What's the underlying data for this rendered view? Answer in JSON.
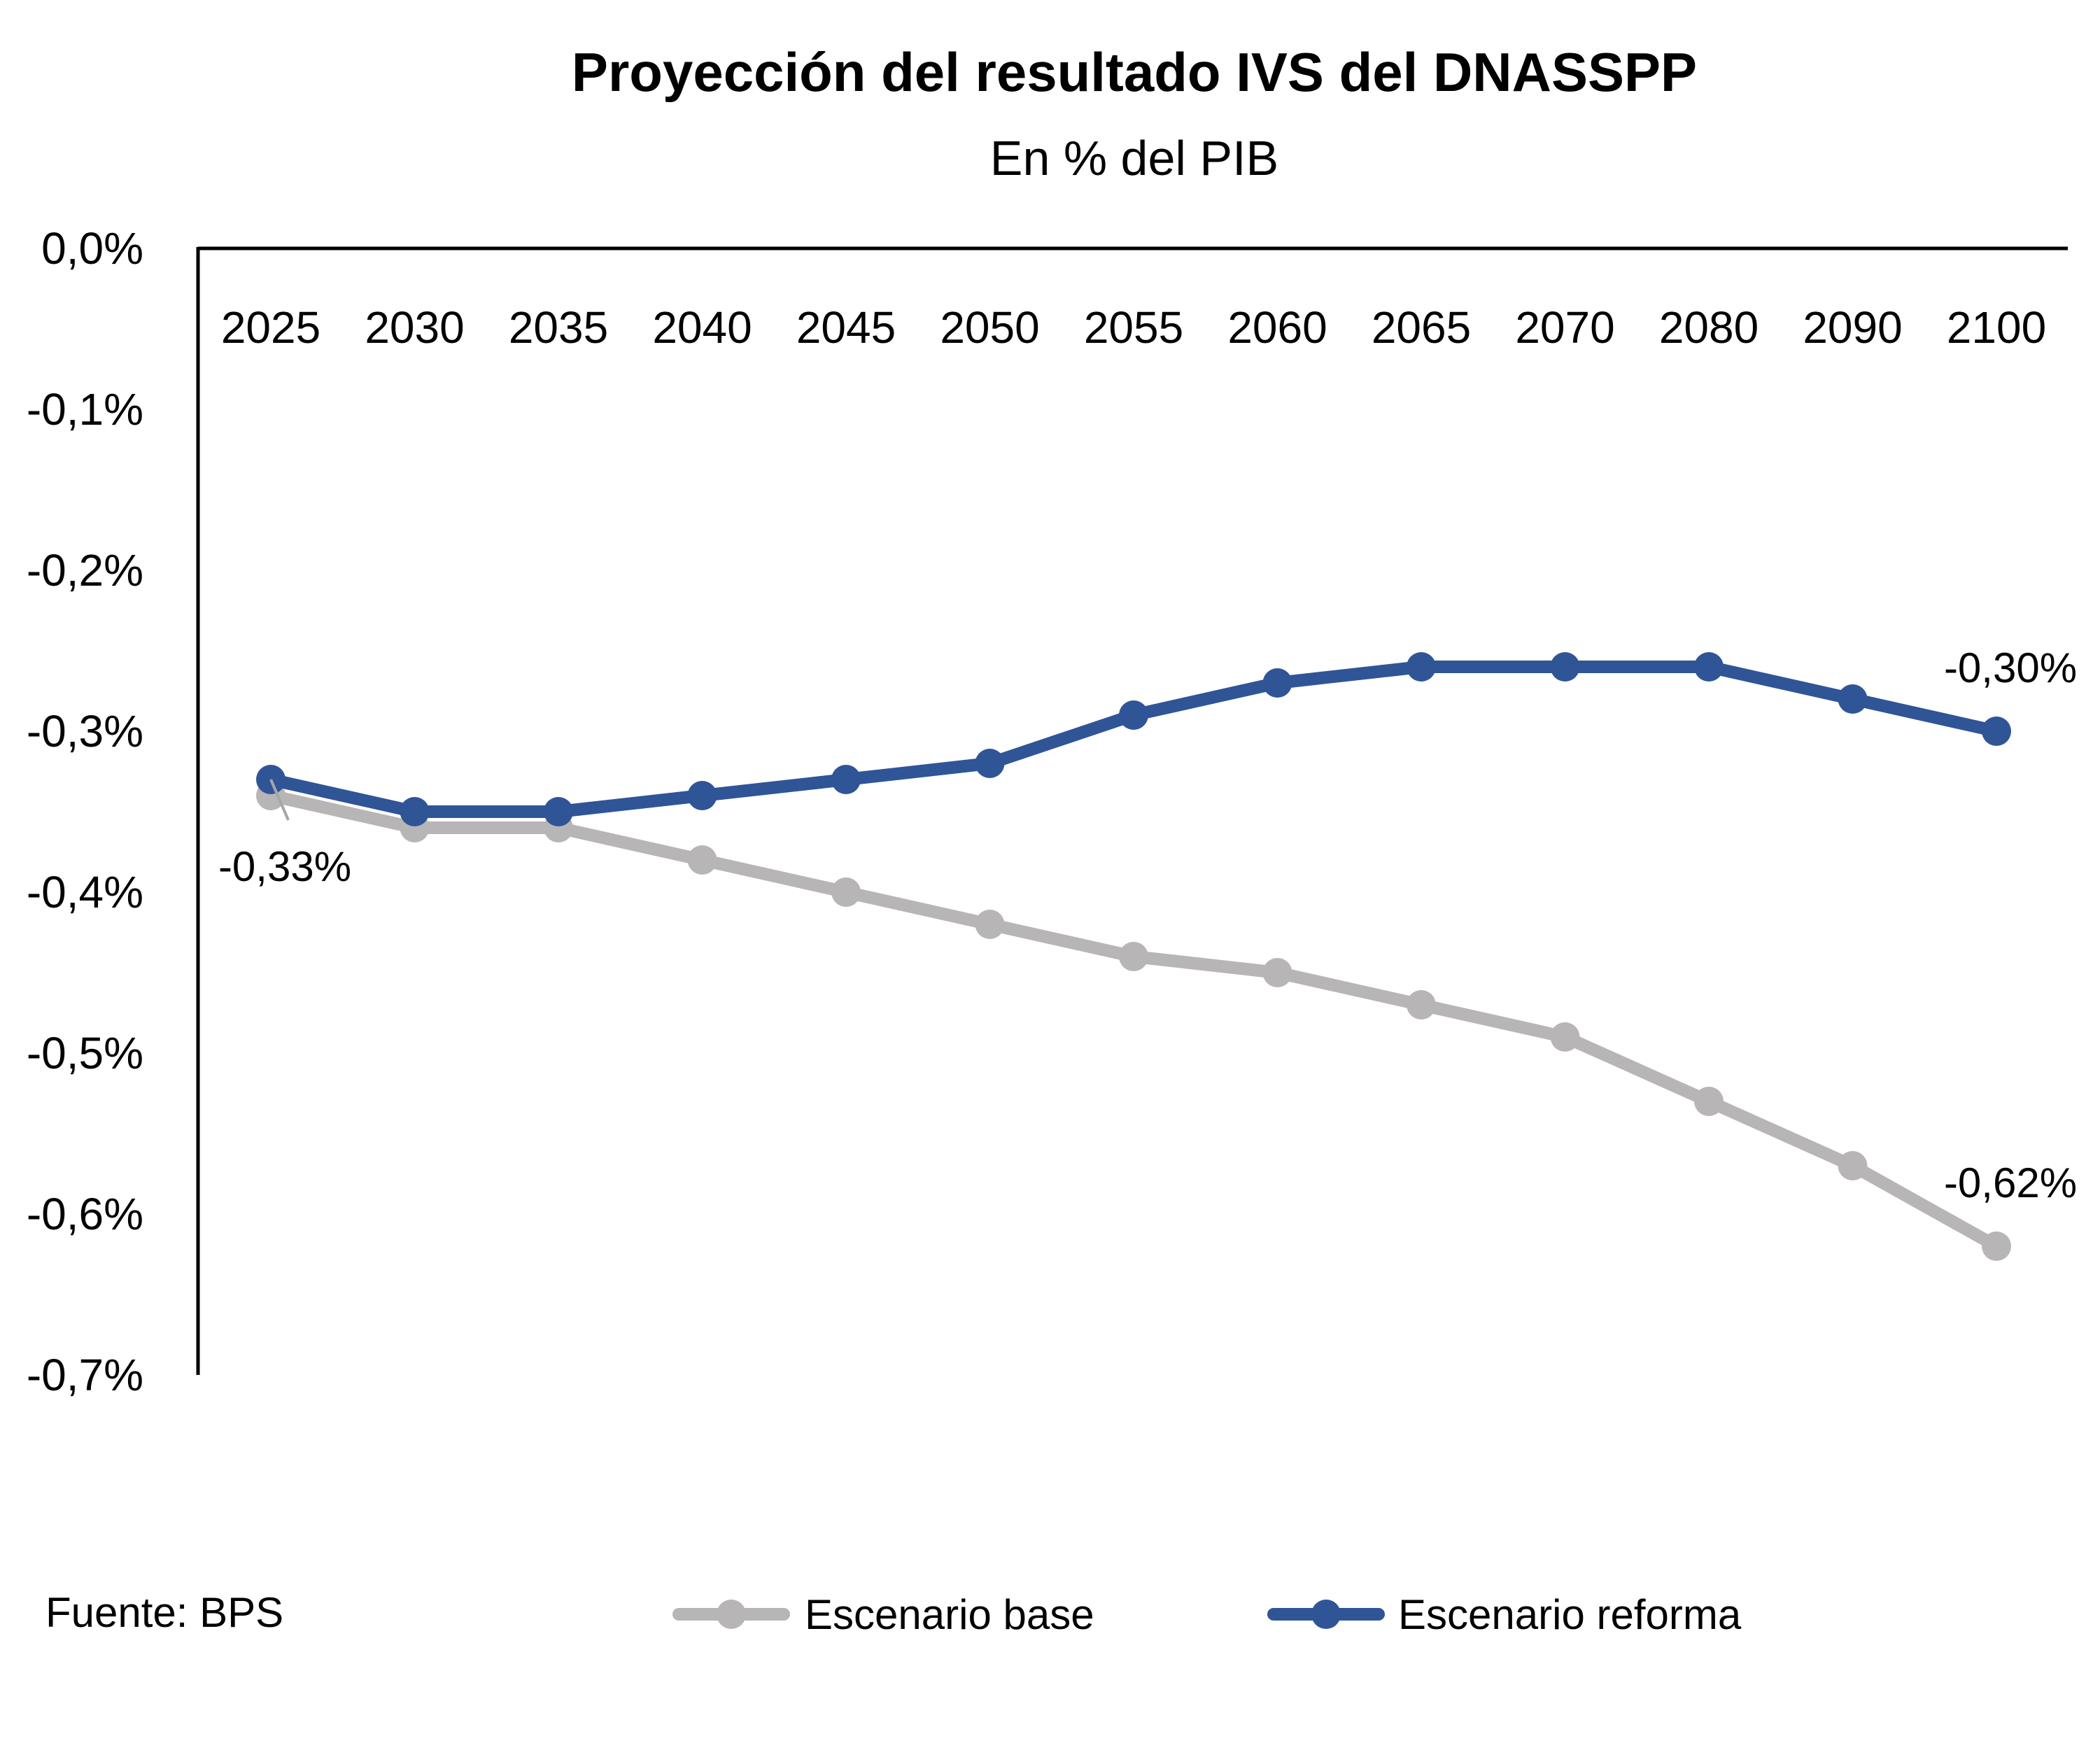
{
  "chart_data": {
    "type": "line",
    "title": "Proyección del resultado IVS del DNASSPP",
    "subtitle": "En % del PIB",
    "categories": [
      "2025",
      "2030",
      "2035",
      "2040",
      "2045",
      "2050",
      "2055",
      "2060",
      "2065",
      "2070",
      "2080",
      "2090",
      "2100"
    ],
    "ylim": [
      -0.7,
      0.0
    ],
    "yticks": [
      0.0,
      -0.1,
      -0.2,
      -0.3,
      -0.4,
      -0.5,
      -0.6,
      -0.7
    ],
    "ytick_labels": [
      "0,0%",
      "-0,1%",
      "-0,2%",
      "-0,3%",
      "-0,4%",
      "-0,5%",
      "-0,6%",
      "-0,7%"
    ],
    "grid": false,
    "legend_position": "bottom",
    "series": [
      {
        "name": "Escenario base",
        "color": "#b7b5b5",
        "values": [
          -0.34,
          -0.36,
          -0.36,
          -0.38,
          -0.4,
          -0.42,
          -0.44,
          -0.45,
          -0.47,
          -0.49,
          -0.53,
          -0.57,
          -0.62
        ]
      },
      {
        "name": "Escenario reforma",
        "color": "#2f5597",
        "values": [
          -0.33,
          -0.35,
          -0.35,
          -0.34,
          -0.33,
          -0.32,
          -0.29,
          -0.27,
          -0.26,
          -0.26,
          -0.26,
          -0.28,
          -0.3
        ]
      }
    ],
    "annotations": [
      {
        "text": "-0,33%",
        "category": "2025",
        "value": -0.33,
        "position": "below"
      },
      {
        "text": "-0,30%",
        "category": "2100",
        "value": -0.3,
        "position": "above"
      },
      {
        "text": "-0,62%",
        "category": "2100",
        "value": -0.62,
        "position": "above"
      }
    ]
  },
  "source": "Fuente: BPS"
}
